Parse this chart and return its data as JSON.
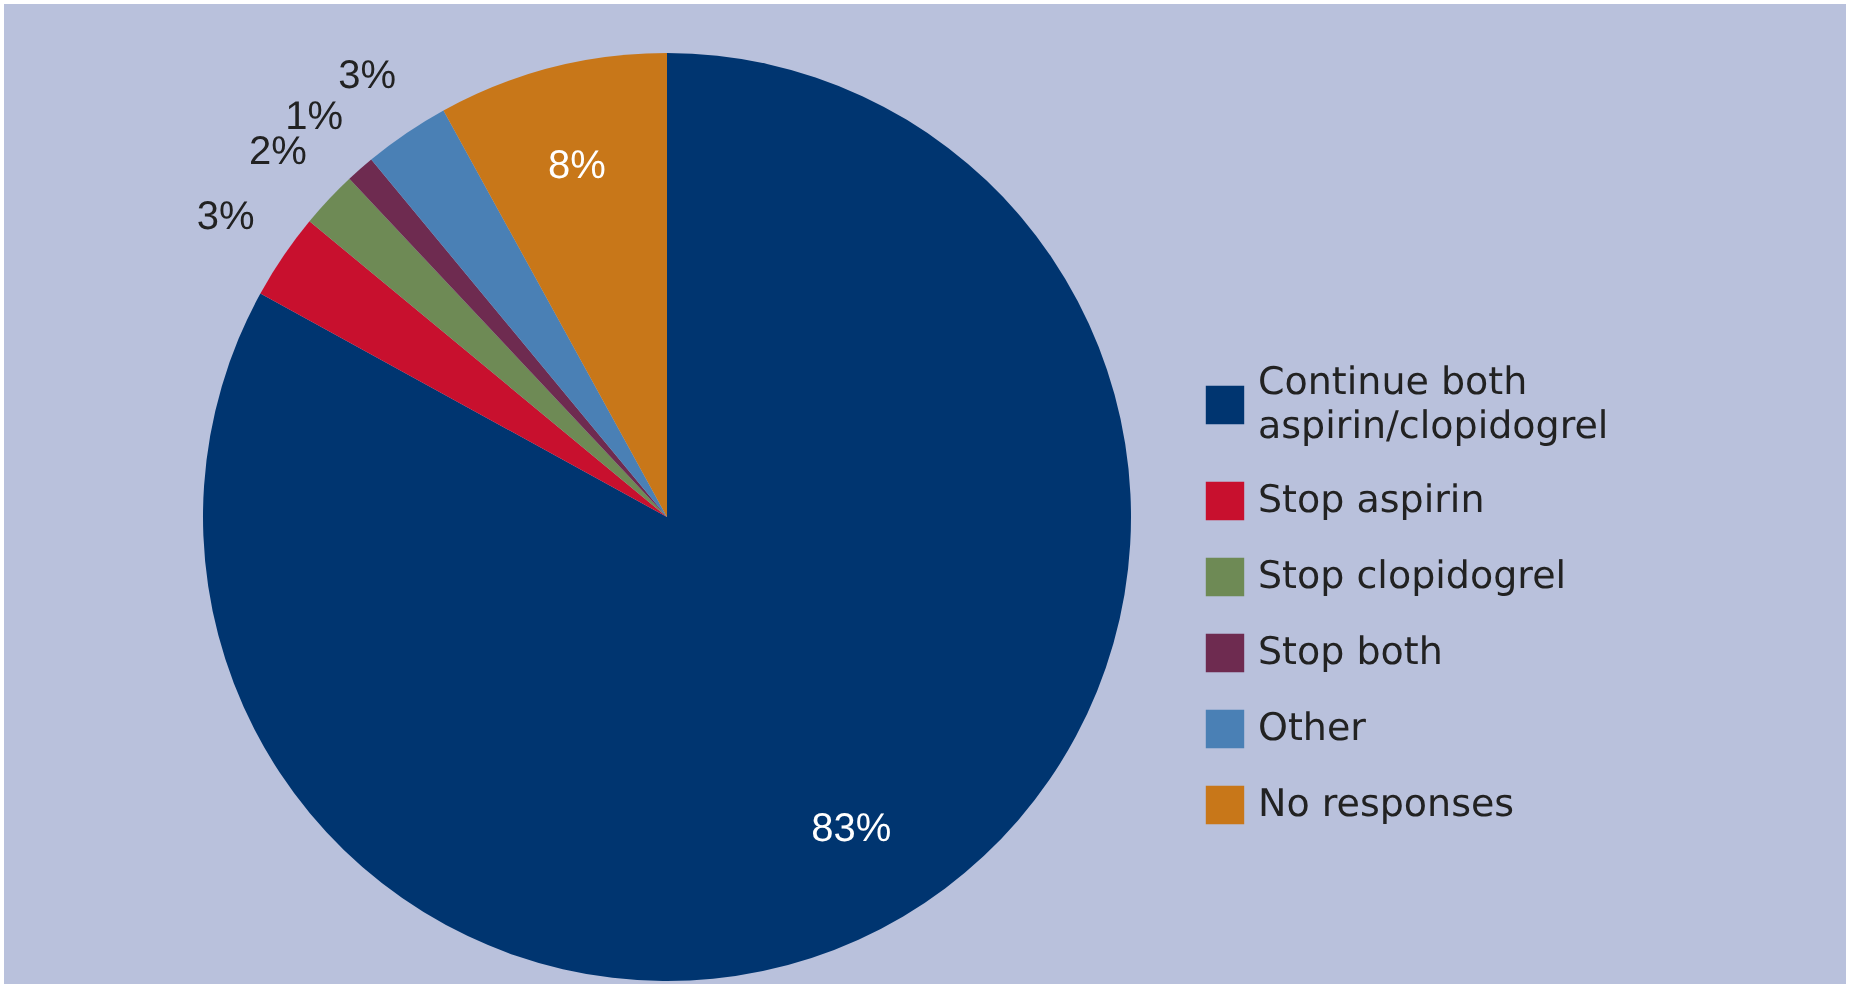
{
  "chart_data": {
    "type": "pie",
    "categories": [
      "Continue both aspirin/clopidogrel",
      "Stop aspirin",
      "Stop clopidogrel",
      "Stop both",
      "Other",
      "No responses"
    ],
    "values": [
      83,
      3,
      2,
      1,
      3,
      8
    ],
    "colors": [
      "#003570",
      "#c8102e",
      "#6e8a55",
      "#6e2b50",
      "#4a80b5",
      "#c87719"
    ],
    "value_labels": [
      "83%",
      "3%",
      "2%",
      "1%",
      "3%",
      "8%"
    ],
    "legend": "right"
  }
}
